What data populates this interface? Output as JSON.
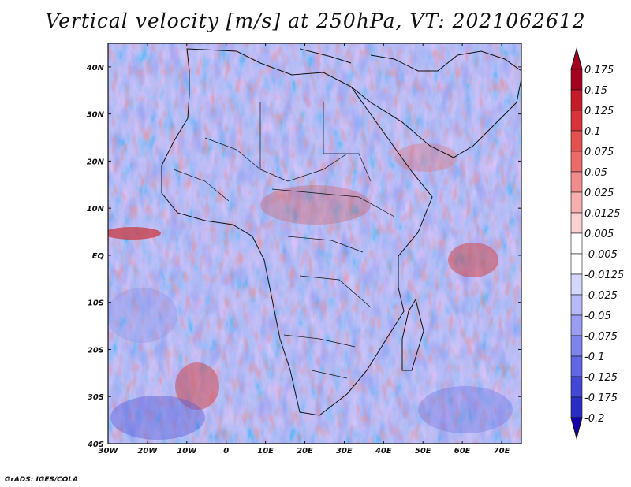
{
  "title": "Vertical velocity [m/s] at 250hPa, VT: 2021062612",
  "credit": "GrADS: IGES/COLA",
  "map": {
    "lon_range": [
      -30,
      75
    ],
    "lat_range": [
      -40,
      45
    ],
    "x_tick_labels": [
      "30W",
      "20W",
      "10W",
      "0",
      "10E",
      "20E",
      "30E",
      "40E",
      "50E",
      "60E",
      "70E"
    ],
    "y_tick_labels": [
      "40N",
      "30N",
      "20N",
      "10N",
      "EQ",
      "10S",
      "20S",
      "30S",
      "40S"
    ]
  },
  "colorbar": {
    "labels": [
      "0.175",
      "0.15",
      "0.125",
      "0.1",
      "0.075",
      "0.05",
      "0.025",
      "0.0125",
      "0.005",
      "-0.005",
      "-0.0125",
      "-0.025",
      "-0.05",
      "-0.075",
      "-0.1",
      "-0.125",
      "-0.175",
      "-0.2"
    ],
    "colors": [
      "#a5001d",
      "#c41c28",
      "#d8333a",
      "#e35050",
      "#ec6c6c",
      "#f28c8c",
      "#f7aeae",
      "#fbd0d0",
      "#ffffff",
      "#ffffff",
      "#d4d6fb",
      "#b6b9f7",
      "#9a9ef2",
      "#7f83ec",
      "#6166e3",
      "#4247d6",
      "#2a2dc4",
      "#1400a8"
    ]
  }
}
